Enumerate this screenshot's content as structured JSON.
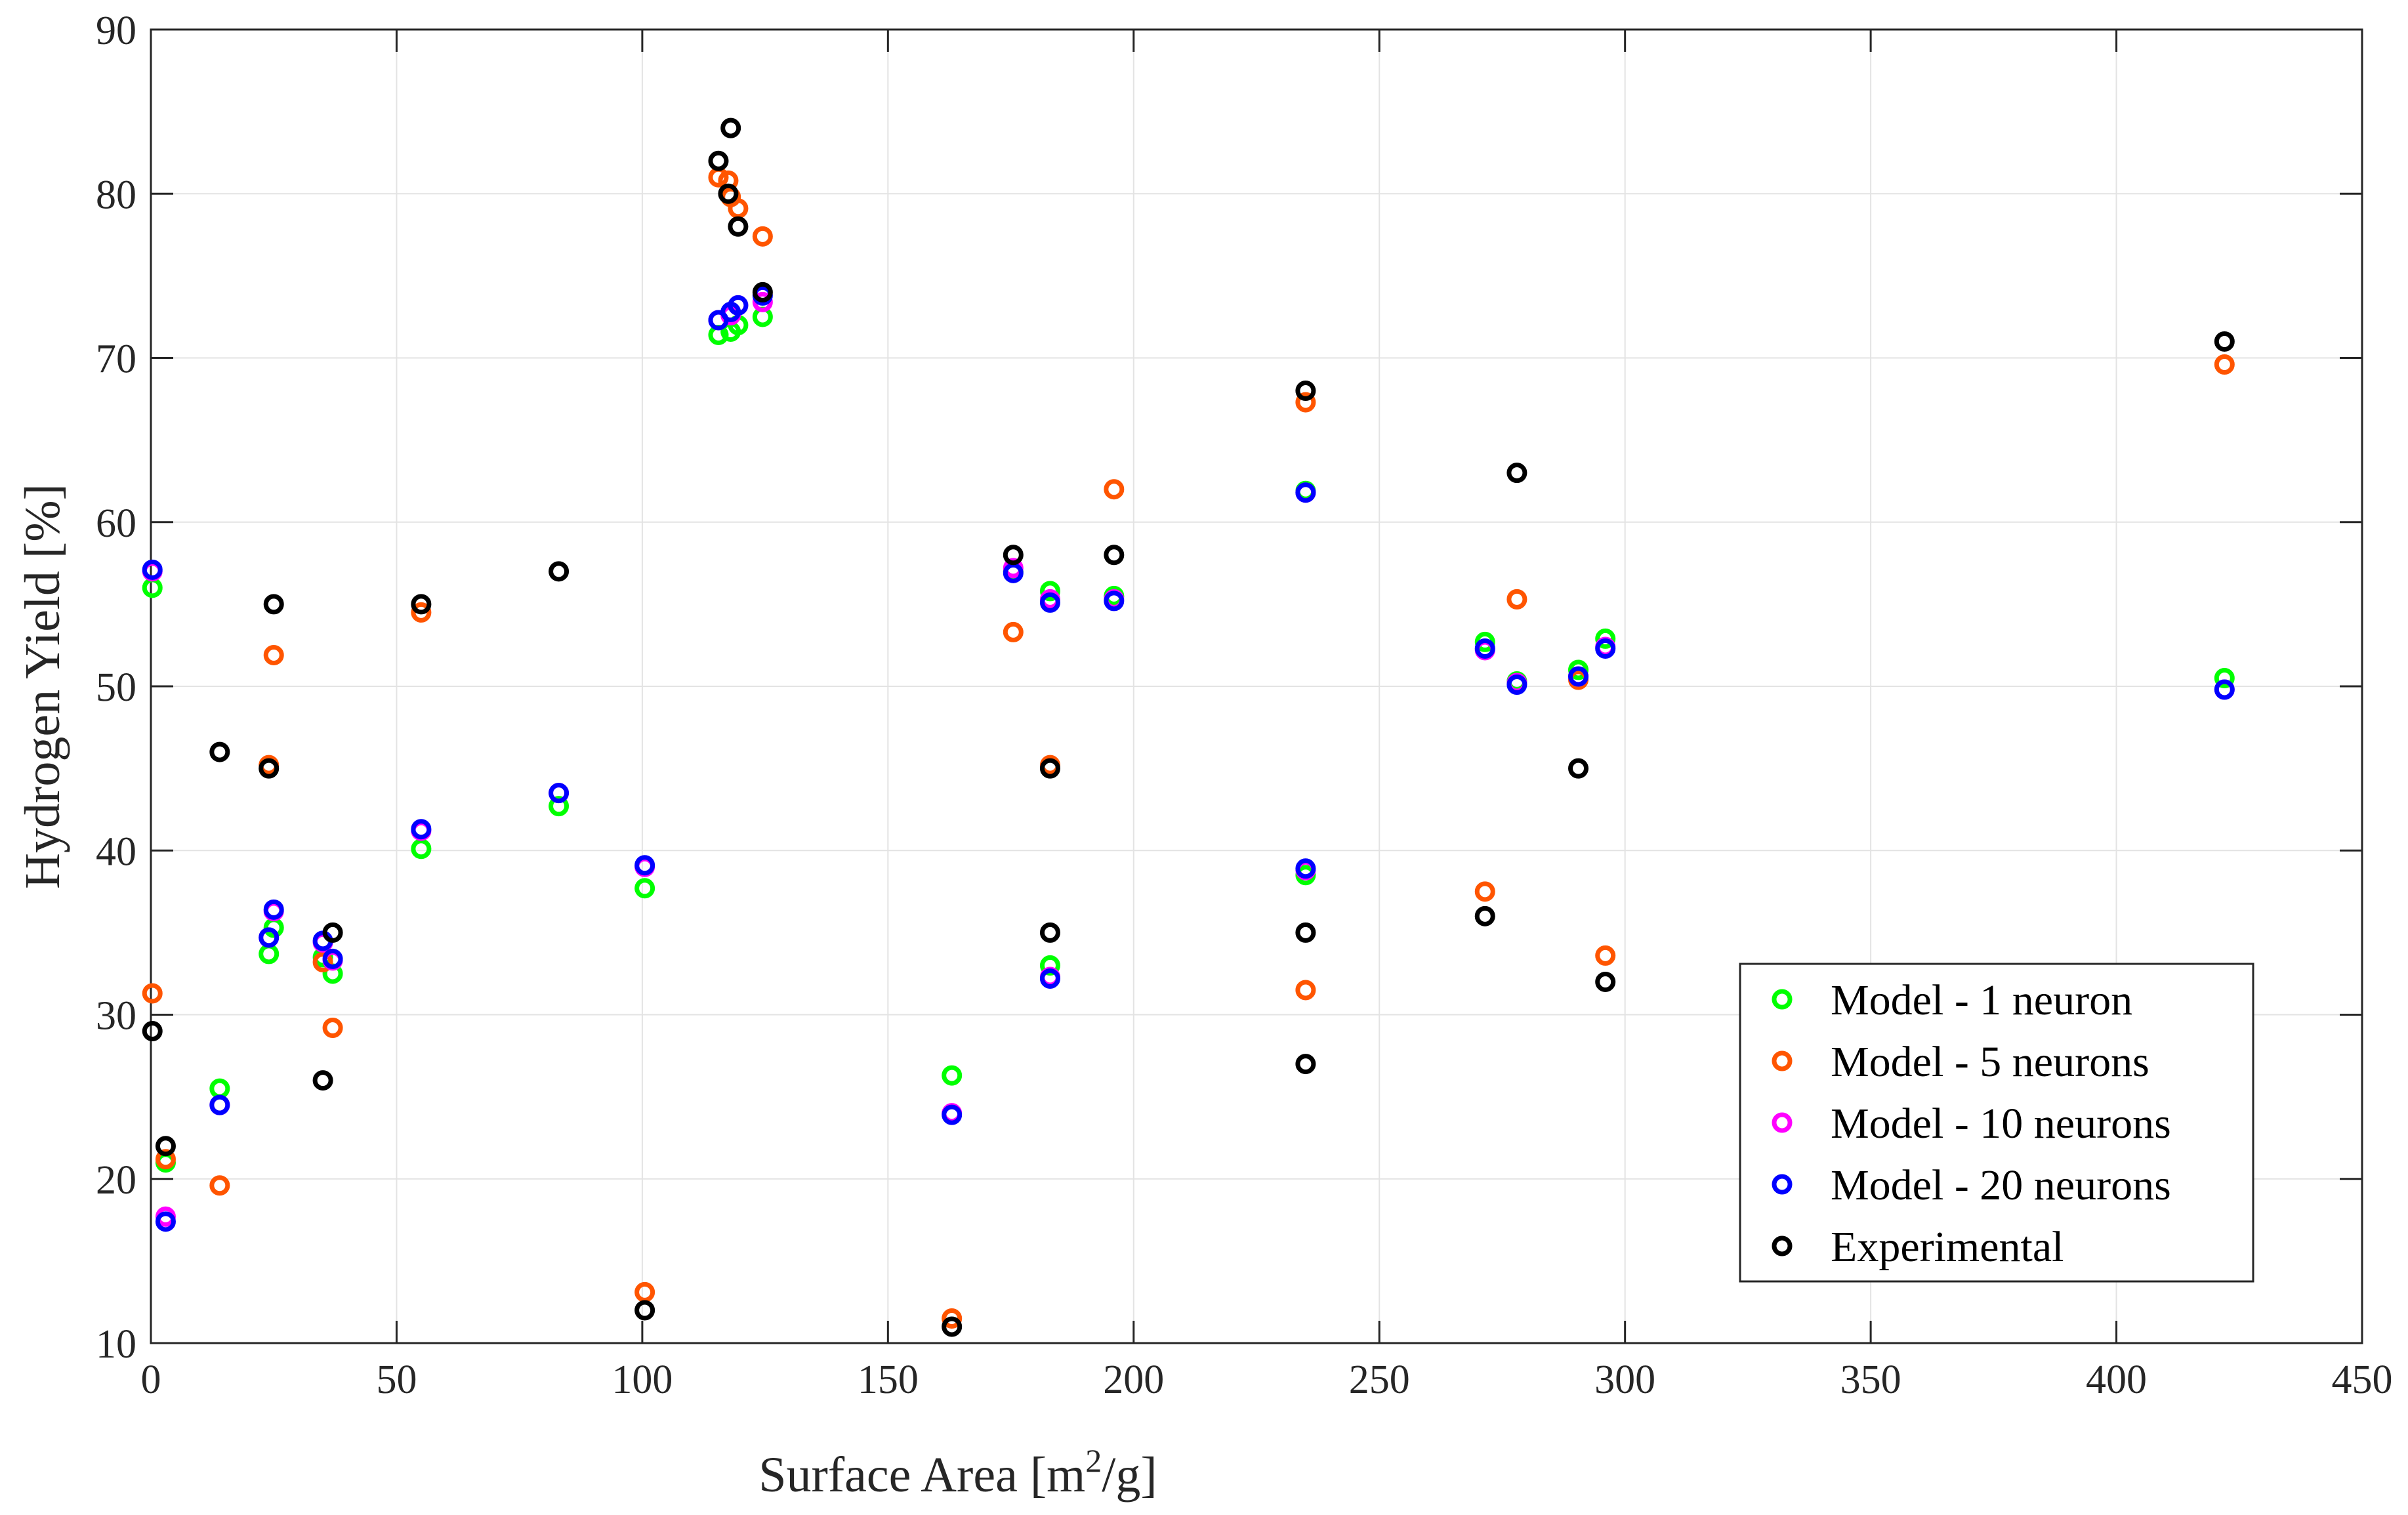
{
  "chart_data": {
    "type": "scatter",
    "title": "",
    "xlabel": "Surface Area [m²/g]",
    "xlabel_main": "Surface Area [m",
    "xlabel_sup": "2",
    "xlabel_end": "/g]",
    "ylabel": "Hydrogen Yield [%]",
    "xlim": [
      0,
      450
    ],
    "ylim": [
      10,
      90
    ],
    "xticks": [
      0,
      50,
      100,
      150,
      200,
      250,
      300,
      350,
      400,
      450
    ],
    "yticks": [
      10,
      20,
      30,
      40,
      50,
      60,
      70,
      80,
      90
    ],
    "grid": true,
    "legend_position": "bottom-right",
    "series": [
      {
        "name": "Model - 1 neuron",
        "color": "#00ff00",
        "points": [
          [
            0.3,
            56
          ],
          [
            3,
            21
          ],
          [
            14,
            25.5
          ],
          [
            24,
            33.7
          ],
          [
            25,
            35.3
          ],
          [
            35,
            33.5
          ],
          [
            37,
            32.5
          ],
          [
            55,
            40.1
          ],
          [
            83,
            42.7
          ],
          [
            100.5,
            37.7
          ],
          [
            115.5,
            71.4
          ],
          [
            118,
            71.6
          ],
          [
            119.5,
            72
          ],
          [
            124.5,
            72.5
          ],
          [
            163,
            26.3
          ],
          [
            175.5,
            57
          ],
          [
            183,
            55.8
          ],
          [
            183,
            33
          ],
          [
            196,
            55.5
          ],
          [
            235,
            61.9
          ],
          [
            235,
            38.5
          ],
          [
            271.5,
            52.7
          ],
          [
            278,
            50.3
          ],
          [
            290.5,
            51
          ],
          [
            296,
            52.9
          ],
          [
            422,
            50.5
          ]
        ]
      },
      {
        "name": "Model - 5 neurons",
        "color": "#ff5500",
        "points": [
          [
            0.3,
            31.3
          ],
          [
            3,
            21.2
          ],
          [
            14,
            19.6
          ],
          [
            24,
            45.2
          ],
          [
            25,
            51.9
          ],
          [
            35,
            33.2
          ],
          [
            37,
            29.2
          ],
          [
            55,
            54.5
          ],
          [
            100.5,
            13.1
          ],
          [
            115.5,
            81
          ],
          [
            117.5,
            80.8
          ],
          [
            118,
            79.8
          ],
          [
            119.5,
            79.1
          ],
          [
            124.5,
            77.4
          ],
          [
            163,
            11.5
          ],
          [
            175.5,
            53.3
          ],
          [
            183,
            45.2
          ],
          [
            196,
            62
          ],
          [
            235,
            67.3
          ],
          [
            235,
            31.5
          ],
          [
            271.5,
            37.5
          ],
          [
            278,
            55.3
          ],
          [
            290.5,
            50.4
          ],
          [
            296,
            33.6
          ],
          [
            422,
            69.6
          ]
        ]
      },
      {
        "name": "Model - 10 neurons",
        "color": "#ff00ff",
        "points": [
          [
            0.3,
            57
          ],
          [
            3,
            17.7
          ],
          [
            14,
            24.5
          ],
          [
            24,
            34.7
          ],
          [
            25,
            36.3
          ],
          [
            35,
            34.4
          ],
          [
            37,
            33.3
          ],
          [
            55,
            41.2
          ],
          [
            83,
            43.5
          ],
          [
            100.5,
            39
          ],
          [
            115.5,
            72.3
          ],
          [
            118,
            72.6
          ],
          [
            119.5,
            73.2
          ],
          [
            124.5,
            73.4
          ],
          [
            163,
            24
          ],
          [
            175.5,
            57.2
          ],
          [
            183,
            55.3
          ],
          [
            183,
            32.3
          ],
          [
            196,
            55.3
          ],
          [
            235,
            61.8
          ],
          [
            235,
            38.8
          ],
          [
            271.5,
            52.2
          ],
          [
            278,
            50.2
          ],
          [
            290.5,
            50.6
          ],
          [
            296,
            52.4
          ],
          [
            422,
            49.8
          ]
        ]
      },
      {
        "name": "Model - 20 neurons",
        "color": "#0000ff",
        "points": [
          [
            0.3,
            57.1
          ],
          [
            3,
            17.4
          ],
          [
            14,
            24.5
          ],
          [
            24,
            34.7
          ],
          [
            25,
            36.4
          ],
          [
            35,
            34.5
          ],
          [
            37,
            33.4
          ],
          [
            55,
            41.3
          ],
          [
            83,
            43.5
          ],
          [
            100.5,
            39.1
          ],
          [
            115.5,
            72.3
          ],
          [
            118,
            72.8
          ],
          [
            119.5,
            73.2
          ],
          [
            124.5,
            73.8
          ],
          [
            163,
            23.9
          ],
          [
            175.5,
            56.9
          ],
          [
            183,
            55.1
          ],
          [
            183,
            32.2
          ],
          [
            196,
            55.2
          ],
          [
            235,
            61.8
          ],
          [
            235,
            38.9
          ],
          [
            271.5,
            52.3
          ],
          [
            278,
            50.1
          ],
          [
            290.5,
            50.6
          ],
          [
            296,
            52.3
          ],
          [
            422,
            49.8
          ]
        ]
      },
      {
        "name": "Experimental",
        "color": "#000000",
        "points": [
          [
            0.3,
            29
          ],
          [
            3,
            22
          ],
          [
            14,
            46
          ],
          [
            24,
            45
          ],
          [
            25,
            55
          ],
          [
            35,
            26
          ],
          [
            37,
            35
          ],
          [
            55,
            55
          ],
          [
            83,
            57
          ],
          [
            100.5,
            12
          ],
          [
            115.5,
            82
          ],
          [
            118,
            84
          ],
          [
            117.5,
            80
          ],
          [
            119.5,
            78
          ],
          [
            124.5,
            74
          ],
          [
            163,
            11
          ],
          [
            175.5,
            58
          ],
          [
            183,
            45
          ],
          [
            183,
            35
          ],
          [
            196,
            58
          ],
          [
            235,
            68
          ],
          [
            235,
            35
          ],
          [
            235,
            27
          ],
          [
            271.5,
            36
          ],
          [
            278,
            63
          ],
          [
            290.5,
            45
          ],
          [
            296,
            32
          ],
          [
            422,
            71
          ]
        ]
      }
    ]
  }
}
